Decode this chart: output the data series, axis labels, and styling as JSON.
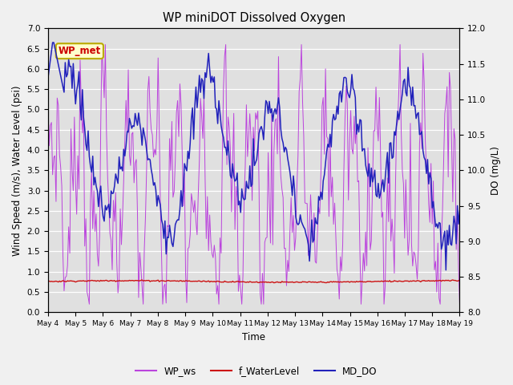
{
  "title": "WP miniDOT Dissolved Oxygen",
  "ylabel_left": "Wind Speed (m/s), Water Level (psi)",
  "ylabel_right": "DO (mg/L)",
  "xlabel": "Time",
  "ylim_left": [
    0.0,
    7.0
  ],
  "ylim_right": [
    8.0,
    12.0
  ],
  "fig_facecolor": "#f0f0f0",
  "plot_bg_color": "#e0e0e0",
  "annotation_text": "WP_met",
  "annotation_color": "#cc0000",
  "annotation_bg": "#ffffcc",
  "annotation_edge": "#bbaa00",
  "legend_labels": [
    "WP_ws",
    "f_WaterLevel",
    "MD_DO"
  ],
  "wp_ws_color": "#bb44dd",
  "f_wl_color": "#cc1111",
  "md_do_color": "#2222bb",
  "x_tick_labels": [
    "May 4",
    "May 5",
    "May 6",
    "May 7",
    "May 8",
    "May 9",
    "May 10",
    "May 11",
    "May 12",
    "May 13",
    "May 14",
    "May 15",
    "May 16",
    "May 17",
    "May 18",
    "May 19"
  ],
  "yticks_left": [
    0.0,
    0.5,
    1.0,
    1.5,
    2.0,
    2.5,
    3.0,
    3.5,
    4.0,
    4.5,
    5.0,
    5.5,
    6.0,
    6.5,
    7.0
  ],
  "yticks_right": [
    8.0,
    8.5,
    9.0,
    9.5,
    10.0,
    10.5,
    11.0,
    11.5,
    12.0
  ],
  "seed": 7
}
